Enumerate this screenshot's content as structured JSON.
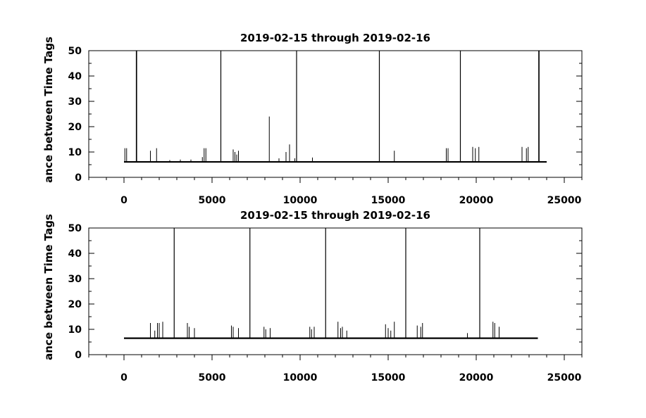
{
  "chart_data": [
    {
      "type": "line",
      "title": "2019-02-15 through 2019-02-16",
      "xlabel": "",
      "ylabel": "ance between Time Tags",
      "xlim": [
        -2000,
        26000
      ],
      "ylim": [
        0,
        50
      ],
      "xticks": [
        0,
        5000,
        10000,
        15000,
        20000,
        25000
      ],
      "xtick_labels": [
        "0",
        "5000",
        "10000",
        "15000",
        "20000",
        "25000"
      ],
      "yticks": [
        0,
        10,
        20,
        30,
        40,
        50
      ],
      "ytick_labels": [
        "0",
        "10",
        "20",
        "30",
        "40",
        "50"
      ],
      "grid": false,
      "baseline": {
        "x_start": 0,
        "x_end": 24000,
        "y": 6.1
      },
      "series": [
        {
          "x": [
            0,
            50,
            150,
            1500,
            1850,
            2600,
            3200,
            3800,
            4450,
            4550,
            4650,
            5500,
            6200,
            6300,
            6400,
            6500,
            8250,
            8800,
            9200,
            9400,
            9700,
            10700,
            15350,
            18300,
            18400,
            19800,
            19950,
            20150,
            22600,
            22850,
            22950,
            23500
          ],
          "y": [
            6.1,
            11.5,
            11.5,
            10.5,
            11.5,
            6.8,
            7,
            7,
            8,
            11.5,
            11.5,
            6.1,
            11,
            10,
            9,
            10.5,
            24,
            7.5,
            10,
            13,
            7.5,
            7.8,
            10.5,
            11.5,
            11.5,
            12,
            11.5,
            12,
            12,
            11.5,
            12,
            6.1
          ]
        }
      ],
      "reset_spikes_x": [
        700,
        710,
        720,
        5500,
        9800,
        14500,
        19100,
        23550,
        23570
      ],
      "reset_spike_y": 50
    },
    {
      "type": "line",
      "title": "2019-02-15 through 2019-02-16",
      "xlabel": "",
      "ylabel": "ance between Time Tags",
      "xlim": [
        -2000,
        26000
      ],
      "ylim": [
        0,
        50
      ],
      "xticks": [
        0,
        5000,
        10000,
        15000,
        20000,
        25000
      ],
      "xtick_labels": [
        "0",
        "5000",
        "10000",
        "15000",
        "20000",
        "25000"
      ],
      "yticks": [
        0,
        10,
        20,
        30,
        40,
        50
      ],
      "ytick_labels": [
        "0",
        "10",
        "20",
        "30",
        "40",
        "50"
      ],
      "grid": false,
      "baseline": {
        "x_start": 0,
        "x_end": 23500,
        "y": 6.5
      },
      "series": [
        {
          "x": [
            0,
            1500,
            1750,
            1900,
            2000,
            2200,
            3600,
            3700,
            4000,
            6100,
            6200,
            6500,
            7950,
            8050,
            8300,
            10550,
            10650,
            10800,
            12150,
            12300,
            12400,
            12650,
            14850,
            15000,
            15150,
            15350,
            16650,
            16850,
            16950,
            19500,
            20950,
            21050,
            21300,
            23500
          ],
          "y": [
            6.5,
            12.5,
            9.5,
            12.5,
            12.5,
            13,
            12.5,
            11,
            10.5,
            11.5,
            11,
            10.5,
            11,
            10,
            10.5,
            11,
            10,
            11,
            13,
            10.5,
            11,
            9.5,
            12,
            10.5,
            9.5,
            13,
            11.5,
            11,
            12.5,
            8.5,
            13,
            12.5,
            11,
            6.5
          ]
        }
      ],
      "reset_spikes_x": [
        2850,
        7150,
        11450,
        16000,
        20200
      ],
      "reset_spike_y": 50
    }
  ]
}
